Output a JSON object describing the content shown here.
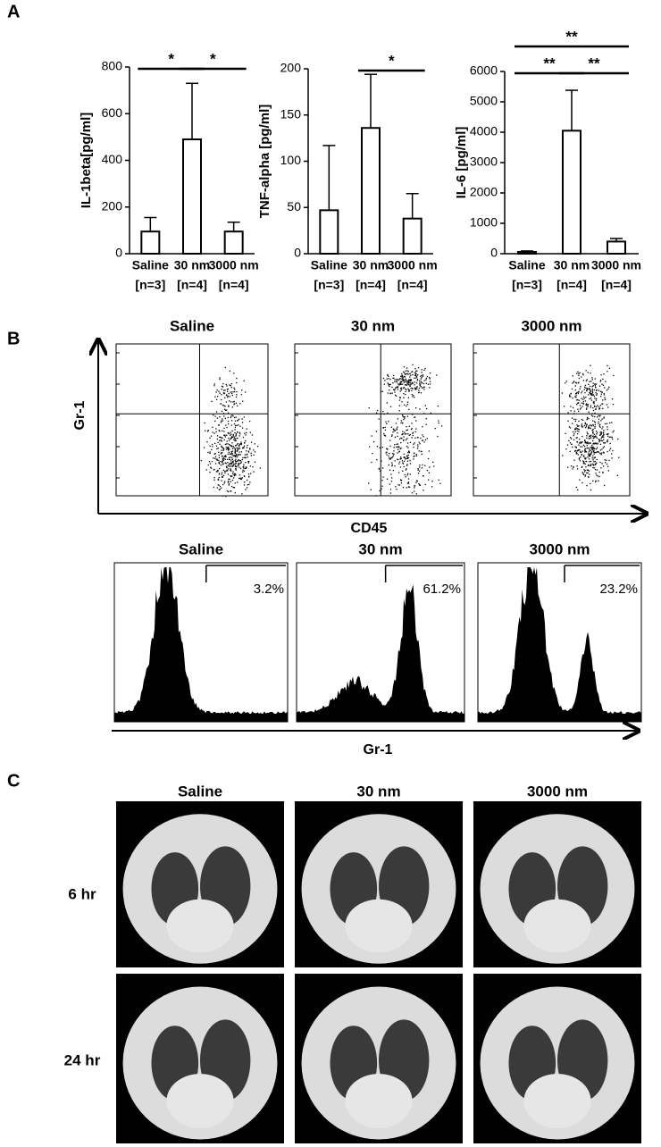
{
  "panel_labels": [
    "A",
    "B",
    "C"
  ],
  "chart_data": [
    {
      "type": "bar",
      "y_label": "IL-1beta[pg/ml]",
      "categories": [
        "Saline",
        "30 nm",
        "3000 nm"
      ],
      "n_labels": [
        "[n=3]",
        "[n=4]",
        "[n=4]"
      ],
      "values": [
        95,
        490,
        95
      ],
      "errors": [
        60,
        240,
        40
      ],
      "color": "#ffffff",
      "ylim": [
        0,
        800
      ],
      "yticks": [
        0,
        200,
        400,
        600,
        800
      ],
      "significance": [
        {
          "between": [
            0,
            1
          ],
          "label": "*"
        },
        {
          "between": [
            1,
            2
          ],
          "label": "*"
        }
      ]
    },
    {
      "type": "bar",
      "y_label": "TNF-alpha [pg/ml]",
      "categories": [
        "Saline",
        "30 nm",
        "3000 nm"
      ],
      "n_labels": [
        "[n=3]",
        "[n=4]",
        "[n=4]"
      ],
      "values": [
        47,
        136,
        38
      ],
      "errors": [
        70,
        58,
        27
      ],
      "color": "#ffffff",
      "ylim": [
        0,
        200
      ],
      "yticks": [
        0,
        50,
        100,
        150,
        200
      ],
      "significance": [
        {
          "between": [
            1,
            2
          ],
          "label": "*"
        }
      ]
    },
    {
      "type": "bar",
      "y_label": "IL-6 [pg/ml]",
      "categories": [
        "Saline",
        "30 nm",
        "3000 nm"
      ],
      "n_labels": [
        "[n=3]",
        "[n=4]",
        "[n=4]"
      ],
      "values": [
        60,
        4050,
        400
      ],
      "errors": [
        30,
        1330,
        100
      ],
      "color": "#ffffff",
      "ylim": [
        0,
        6000
      ],
      "yticks": [
        0,
        1000,
        2000,
        3000,
        4000,
        5000,
        6000
      ],
      "significance": [
        {
          "between": [
            0,
            1
          ],
          "label": "**"
        },
        {
          "between": [
            1,
            2
          ],
          "label": "**"
        },
        {
          "between": [
            0,
            2
          ],
          "label": "**"
        }
      ]
    }
  ],
  "flow": {
    "titles": [
      "Saline",
      "30 nm",
      "3000 nm"
    ],
    "y_label": "Gr-1",
    "x_label": "CD45"
  },
  "histogram": {
    "titles": [
      "Saline",
      "30 nm",
      "3000 nm"
    ],
    "percentages": [
      "3.2%",
      "61.2%",
      "23.2%"
    ],
    "x_label": "Gr-1"
  },
  "ct": {
    "columns": [
      "Saline",
      "30 nm",
      "3000 nm"
    ],
    "rows": [
      "6 hr",
      "24 hr"
    ]
  }
}
